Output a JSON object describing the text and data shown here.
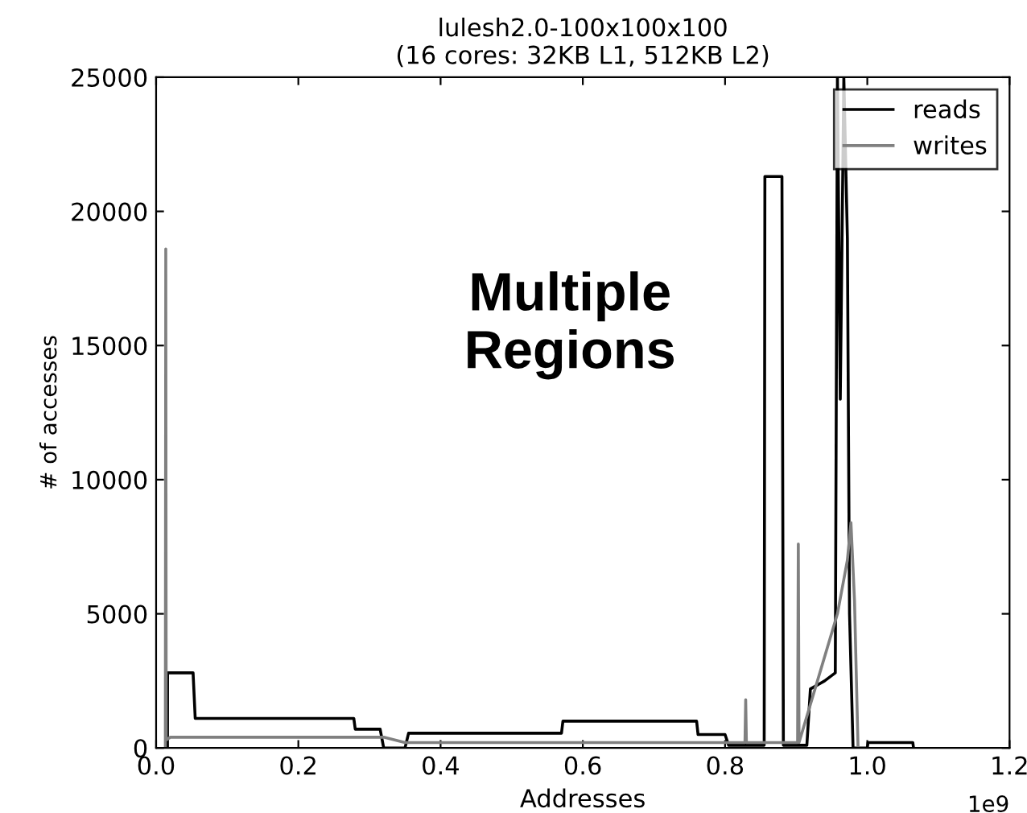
{
  "chart_data": {
    "type": "line",
    "title": "lulesh2.0-100x100x100\n(16 cores: 32KB L1, 512KB L2)",
    "xlabel": "Addresses",
    "ylabel": "# of accesses",
    "annotations": [
      "Multiple\nRegions",
      "1e9"
    ],
    "xlim": [
      0,
      1.2
    ],
    "ylim": [
      0,
      25000
    ],
    "xticks": [
      {
        "value": 0,
        "label": "0.0"
      },
      0.2,
      0.4,
      0.6,
      0.8,
      {
        "value": 1,
        "label": "1.0"
      },
      1.2
    ],
    "yticks": [
      0,
      5000,
      10000,
      15000,
      20000,
      25000
    ],
    "grid": false,
    "legend": "top right",
    "marker": "none",
    "line_style": "solid",
    "series": [
      {
        "name": "reads",
        "color": "#000000",
        "x": [
          0.016,
          0.0161,
          0.052,
          0.055,
          0.278,
          0.28,
          0.315,
          0.32,
          0.35,
          0.355,
          0.57,
          0.572,
          0.76,
          0.762,
          0.8,
          0.805,
          0.855,
          0.856,
          0.88,
          0.882,
          0.915,
          0.92,
          0.94,
          0.955,
          0.958,
          0.962,
          0.967,
          0.972,
          0.975,
          0.98,
          1.0,
          1.001,
          1.064,
          1.065
        ],
        "values": [
          0,
          2800,
          2800,
          1100,
          1100,
          700,
          700,
          0,
          0,
          550,
          550,
          1000,
          1000,
          500,
          500,
          100,
          100,
          21300,
          21300,
          100,
          100,
          2200,
          2500,
          2800,
          25000,
          13000,
          25000,
          19000,
          5000,
          0,
          0,
          200,
          200,
          0
        ]
      },
      {
        "name": "writes",
        "color": "#808080",
        "x": [
          0.013,
          0.0136,
          0.0142,
          0.02,
          0.32,
          0.35,
          0.8,
          0.828,
          0.829,
          0.83,
          0.902,
          0.903,
          0.904,
          0.958,
          0.965,
          0.972,
          0.977,
          0.982,
          0.987
        ],
        "values": [
          0,
          18600,
          300,
          400,
          400,
          200,
          200,
          200,
          1800,
          200,
          200,
          7600,
          200,
          5000,
          6000,
          7000,
          8400,
          5500,
          0
        ]
      }
    ]
  }
}
